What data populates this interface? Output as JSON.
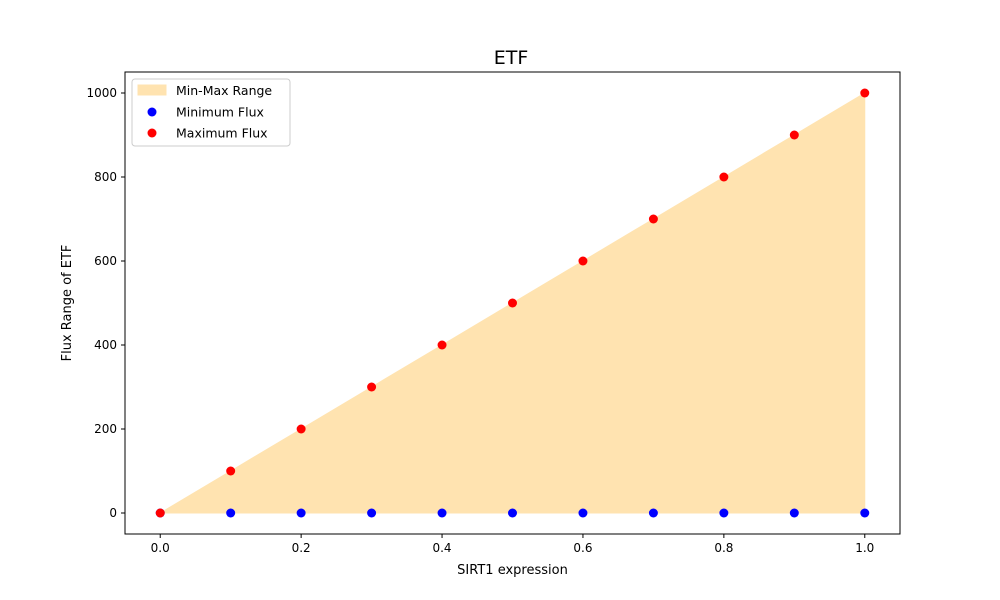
{
  "chart_data": {
    "type": "scatter",
    "title": "ETF",
    "xlabel": "SIRT1 expression",
    "ylabel": "Flux Range of ETF",
    "xlim": [
      -0.05,
      1.05
    ],
    "ylim": [
      -50,
      1050
    ],
    "x_ticks": [
      "0.0",
      "0.2",
      "0.4",
      "0.6",
      "0.8",
      "1.0"
    ],
    "y_ticks": [
      "0",
      "200",
      "400",
      "600",
      "800",
      "1000"
    ],
    "grid": false,
    "legend_position": "top-left",
    "x": [
      0.0,
      0.1,
      0.2,
      0.3,
      0.4,
      0.5,
      0.6,
      0.7,
      0.8,
      0.9,
      1.0
    ],
    "fill": {
      "name": "Min-Max Range",
      "color": "#ffe3b0"
    },
    "series": [
      {
        "name": "Minimum Flux",
        "color": "#0000ff",
        "values": [
          0,
          0,
          0,
          0,
          0,
          0,
          0,
          0,
          0,
          0,
          0
        ]
      },
      {
        "name": "Maximum Flux",
        "color": "#ff0000",
        "values": [
          0,
          100,
          200,
          300,
          400,
          500,
          600,
          700,
          800,
          900,
          1000
        ]
      }
    ]
  }
}
